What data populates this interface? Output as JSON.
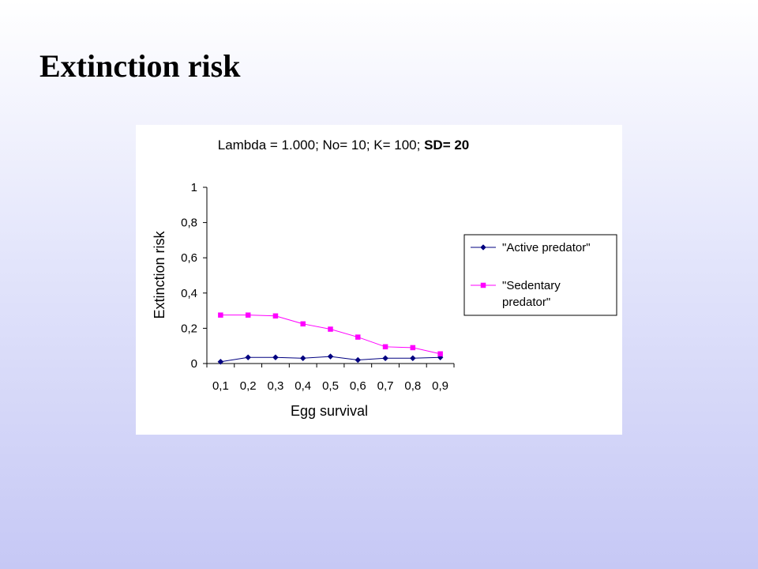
{
  "slide": {
    "title": "Extinction risk",
    "background_top": "#ffffff",
    "background_bottom": "#c6c8f5"
  },
  "chart_data": {
    "type": "line",
    "title_normal": "Lambda = 1.000; No= 10; K= 100; ",
    "title_bold": "SD= 20",
    "xlabel": "Egg survival",
    "ylabel": "Extinction risk",
    "categories": [
      "0,1",
      "0,2",
      "0,3",
      "0,4",
      "0,5",
      "0,6",
      "0,7",
      "0,8",
      "0,9"
    ],
    "ylim": [
      0,
      1
    ],
    "yticks": [
      {
        "value": 0,
        "label": "0"
      },
      {
        "value": 0.2,
        "label": "0,2"
      },
      {
        "value": 0.4,
        "label": "0,4"
      },
      {
        "value": 0.6,
        "label": "0,6"
      },
      {
        "value": 0.8,
        "label": "0,8"
      },
      {
        "value": 1,
        "label": "1"
      }
    ],
    "grid": false,
    "legend_position": "right",
    "series": [
      {
        "name": "\"Active predator\"",
        "legend_lines": [
          "\"Active predator\""
        ],
        "color": "#000080",
        "marker": "diamond",
        "values": [
          0.01,
          0.035,
          0.035,
          0.03,
          0.04,
          0.02,
          0.03,
          0.03,
          0.035
        ]
      },
      {
        "name": "\"Sedentary predator\"",
        "legend_lines": [
          "\"Sedentary",
          "predator\""
        ],
        "color": "#ff00ff",
        "marker": "square",
        "values": [
          0.275,
          0.275,
          0.27,
          0.225,
          0.195,
          0.15,
          0.095,
          0.09,
          0.055
        ]
      }
    ]
  }
}
